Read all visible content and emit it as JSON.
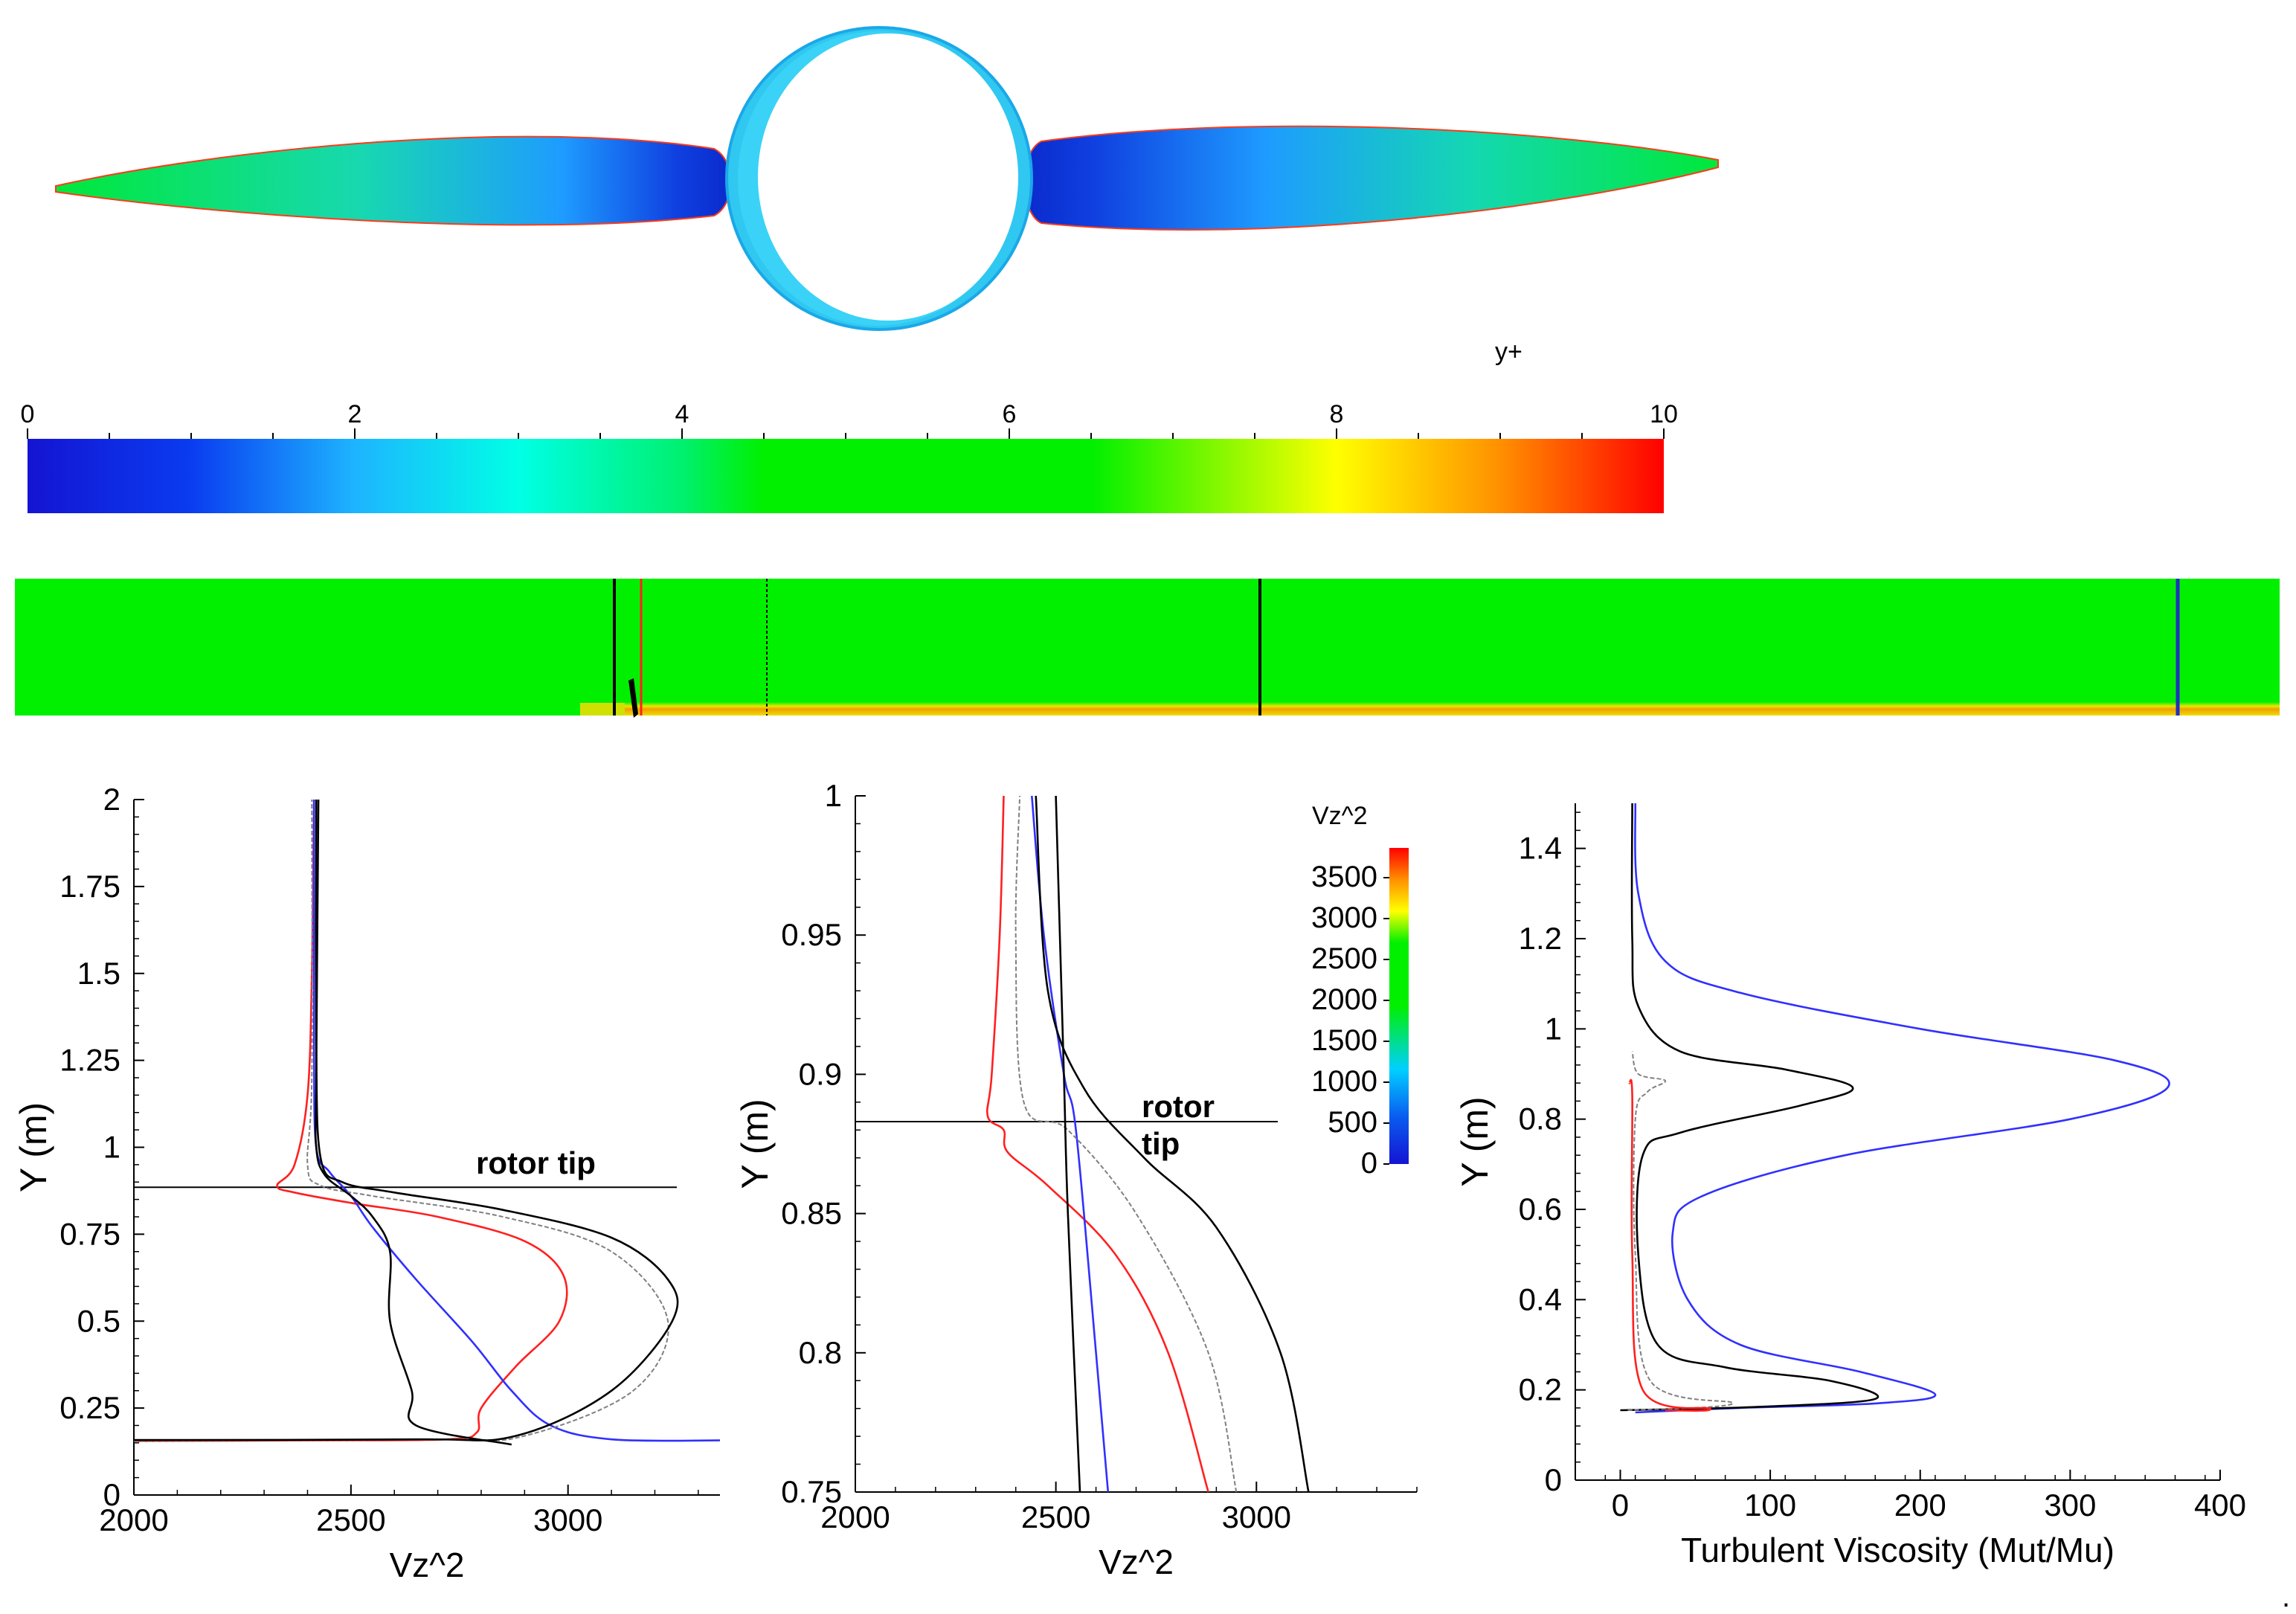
{
  "colors": {
    "contour": [
      "#1010d8",
      "#0a5cf0",
      "#14c4ff",
      "#00ffe8",
      "#00f040",
      "#00f000",
      "#ffff00",
      "#ffa000",
      "#ff0000"
    ],
    "red": "#ff2020",
    "blue": "#3030ff",
    "black": "#000000",
    "gray": "#808080"
  },
  "contour_figure": {
    "legend_title": "y+",
    "legend_ticks": [
      "0",
      "2",
      "4",
      "6",
      "8",
      "10"
    ]
  },
  "chart_data": [
    {
      "type": "line",
      "name": "vz2-profile-full",
      "xlabel": "Vz^2",
      "ylabel": "Y (m)",
      "xlim": [
        2000,
        3350
      ],
      "ylim": [
        0,
        2
      ],
      "xticks": [
        "2000",
        "2500",
        "3000"
      ],
      "yticks": [
        "0",
        "0.25",
        "0.5",
        "0.75",
        "1",
        "1.25",
        "1.5",
        "1.75",
        "2"
      ],
      "annotation": "rotor tip",
      "rotor_tip_y": 0.885,
      "series": [
        {
          "name": "red",
          "color": "red",
          "points": [
            [
              2000,
              0.155
            ],
            [
              2400,
              0.157
            ],
            [
              2720,
              0.16
            ],
            [
              2790,
              0.18
            ],
            [
              2800,
              0.25
            ],
            [
              2880,
              0.37
            ],
            [
              2980,
              0.5
            ],
            [
              2990,
              0.63
            ],
            [
              2900,
              0.73
            ],
            [
              2700,
              0.8
            ],
            [
              2500,
              0.84
            ],
            [
              2370,
              0.87
            ],
            [
              2330,
              0.89
            ],
            [
              2370,
              0.95
            ],
            [
              2400,
              1.15
            ],
            [
              2410,
              1.5
            ],
            [
              2415,
              2.0
            ]
          ]
        },
        {
          "name": "blue",
          "color": "blue",
          "points": [
            [
              3350,
              0.157
            ],
            [
              3100,
              0.16
            ],
            [
              2960,
              0.2
            ],
            [
              2870,
              0.3
            ],
            [
              2780,
              0.44
            ],
            [
              2650,
              0.62
            ],
            [
              2550,
              0.77
            ],
            [
              2500,
              0.86
            ],
            [
              2450,
              0.93
            ],
            [
              2420,
              1.0
            ],
            [
              2415,
              1.3
            ],
            [
              2415,
              2.0
            ]
          ]
        },
        {
          "name": "black-dotted",
          "color": "gray",
          "dashed": true,
          "points": [
            [
              2000,
              0.155
            ],
            [
              2700,
              0.16
            ],
            [
              2900,
              0.17
            ],
            [
              3150,
              0.3
            ],
            [
              3230,
              0.5
            ],
            [
              3100,
              0.7
            ],
            [
              2850,
              0.8
            ],
            [
              2550,
              0.86
            ],
            [
              2430,
              0.89
            ],
            [
              2400,
              0.95
            ],
            [
              2410,
              1.2
            ],
            [
              2410,
              2.0
            ]
          ]
        },
        {
          "name": "black-solid-1",
          "color": "black",
          "points": [
            [
              2870,
              0.145
            ],
            [
              2650,
              0.2
            ],
            [
              2640,
              0.3
            ],
            [
              2590,
              0.5
            ],
            [
              2590,
              0.7
            ],
            [
              2550,
              0.8
            ],
            [
              2500,
              0.86
            ],
            [
              2440,
              0.92
            ],
            [
              2420,
              1.0
            ],
            [
              2420,
              1.2
            ],
            [
              2425,
              2.0
            ]
          ]
        },
        {
          "name": "black-solid-2",
          "color": "black",
          "points": [
            [
              2000,
              0.158
            ],
            [
              2650,
              0.16
            ],
            [
              2880,
              0.17
            ],
            [
              3100,
              0.3
            ],
            [
              3240,
              0.5
            ],
            [
              3230,
              0.62
            ],
            [
              3100,
              0.74
            ],
            [
              2850,
              0.82
            ],
            [
              2600,
              0.87
            ],
            [
              2480,
              0.9
            ],
            [
              2430,
              0.97
            ],
            [
              2420,
              1.3
            ],
            [
              2420,
              2.0
            ]
          ]
        }
      ]
    },
    {
      "type": "line",
      "name": "vz2-profile-zoom",
      "xlabel": "Vz^2",
      "ylabel": "Y (m)",
      "xlim": [
        2000,
        3400
      ],
      "ylim": [
        0.75,
        1.0
      ],
      "xticks": [
        "2000",
        "2500",
        "3000"
      ],
      "yticks": [
        "0.75",
        "0.8",
        "0.85",
        "0.9",
        "0.95",
        "1"
      ],
      "annotation": "rotor\ntip",
      "rotor_tip_y": 0.883,
      "series": [
        {
          "name": "red",
          "color": "red",
          "points": [
            [
              2880,
              0.75
            ],
            [
              2780,
              0.8
            ],
            [
              2650,
              0.835
            ],
            [
              2480,
              0.86
            ],
            [
              2380,
              0.872
            ],
            [
              2370,
              0.88
            ],
            [
              2330,
              0.885
            ],
            [
              2340,
              0.9
            ],
            [
              2360,
              0.95
            ],
            [
              2370,
              1.0
            ]
          ]
        },
        {
          "name": "blue",
          "color": "blue",
          "points": [
            [
              2630,
              0.75
            ],
            [
              2600,
              0.8
            ],
            [
              2550,
              0.88
            ],
            [
              2520,
              0.9
            ],
            [
              2470,
              0.95
            ],
            [
              2440,
              1.0
            ]
          ]
        },
        {
          "name": "black-dotted",
          "color": "gray",
          "dashed": true,
          "points": [
            [
              2950,
              0.75
            ],
            [
              2880,
              0.8
            ],
            [
              2700,
              0.85
            ],
            [
              2530,
              0.88
            ],
            [
              2420,
              0.89
            ],
            [
              2400,
              0.95
            ],
            [
              2410,
              1.0
            ]
          ]
        },
        {
          "name": "black-solid-1",
          "color": "black",
          "points": [
            [
              2560,
              0.75
            ],
            [
              2530,
              0.85
            ],
            [
              2520,
              0.9
            ],
            [
              2500,
              1.0
            ]
          ]
        },
        {
          "name": "black-solid-2",
          "color": "black",
          "points": [
            [
              3130,
              0.75
            ],
            [
              3060,
              0.8
            ],
            [
              2900,
              0.845
            ],
            [
              2720,
              0.87
            ],
            [
              2570,
              0.895
            ],
            [
              2480,
              0.93
            ],
            [
              2450,
              1.0
            ]
          ]
        }
      ]
    },
    {
      "type": "line",
      "name": "turbulent-viscosity-profile",
      "xlabel": "Turbulent Viscosity (Mut/Mu)",
      "ylabel": "Y (m)",
      "xlim": [
        -30,
        400
      ],
      "ylim": [
        0,
        1.5
      ],
      "xticks": [
        "0",
        "100",
        "200",
        "300",
        "400"
      ],
      "yticks": [
        "0",
        "0.2",
        "0.4",
        "0.6",
        "0.8",
        "1",
        "1.2",
        "1.4"
      ],
      "series": [
        {
          "name": "blue",
          "color": "blue",
          "points": [
            [
              10,
              0.15
            ],
            [
              80,
              0.16
            ],
            [
              170,
              0.17
            ],
            [
              210,
              0.19
            ],
            [
              160,
              0.24
            ],
            [
              80,
              0.3
            ],
            [
              45,
              0.4
            ],
            [
              35,
              0.55
            ],
            [
              55,
              0.63
            ],
            [
              150,
              0.72
            ],
            [
              300,
              0.8
            ],
            [
              365,
              0.87
            ],
            [
              330,
              0.93
            ],
            [
              200,
              1.0
            ],
            [
              80,
              1.08
            ],
            [
              30,
              1.15
            ],
            [
              12,
              1.3
            ],
            [
              10,
              1.5
            ]
          ]
        },
        {
          "name": "black-solid",
          "color": "black",
          "points": [
            [
              0,
              0.155
            ],
            [
              90,
              0.162
            ],
            [
              170,
              0.18
            ],
            [
              140,
              0.22
            ],
            [
              70,
              0.25
            ],
            [
              25,
              0.3
            ],
            [
              12,
              0.5
            ],
            [
              15,
              0.72
            ],
            [
              40,
              0.77
            ],
            [
              120,
              0.83
            ],
            [
              155,
              0.87
            ],
            [
              110,
              0.91
            ],
            [
              40,
              0.95
            ],
            [
              12,
              1.05
            ],
            [
              8,
              1.2
            ],
            [
              8,
              1.5
            ]
          ]
        },
        {
          "name": "black-dotted",
          "color": "gray",
          "dashed": true,
          "points": [
            [
              5,
              0.155
            ],
            [
              75,
              0.17
            ],
            [
              20,
              0.22
            ],
            [
              10,
              0.5
            ],
            [
              10,
              0.8
            ],
            [
              18,
              0.86
            ],
            [
              30,
              0.885
            ],
            [
              12,
              0.9
            ],
            [
              8,
              0.95
            ]
          ]
        },
        {
          "name": "red",
          "color": "red",
          "points": [
            [
              30,
              0.155
            ],
            [
              60,
              0.158
            ],
            [
              15,
              0.2
            ],
            [
              8,
              0.5
            ],
            [
              8,
              0.85
            ],
            [
              6,
              0.88
            ]
          ]
        }
      ]
    }
  ],
  "colorbar_vz2": {
    "title": "Vz^2",
    "ticks": [
      "0",
      "500",
      "1000",
      "1500",
      "2000",
      "2500",
      "3000",
      "3500"
    ]
  },
  "trailing_mark": "."
}
